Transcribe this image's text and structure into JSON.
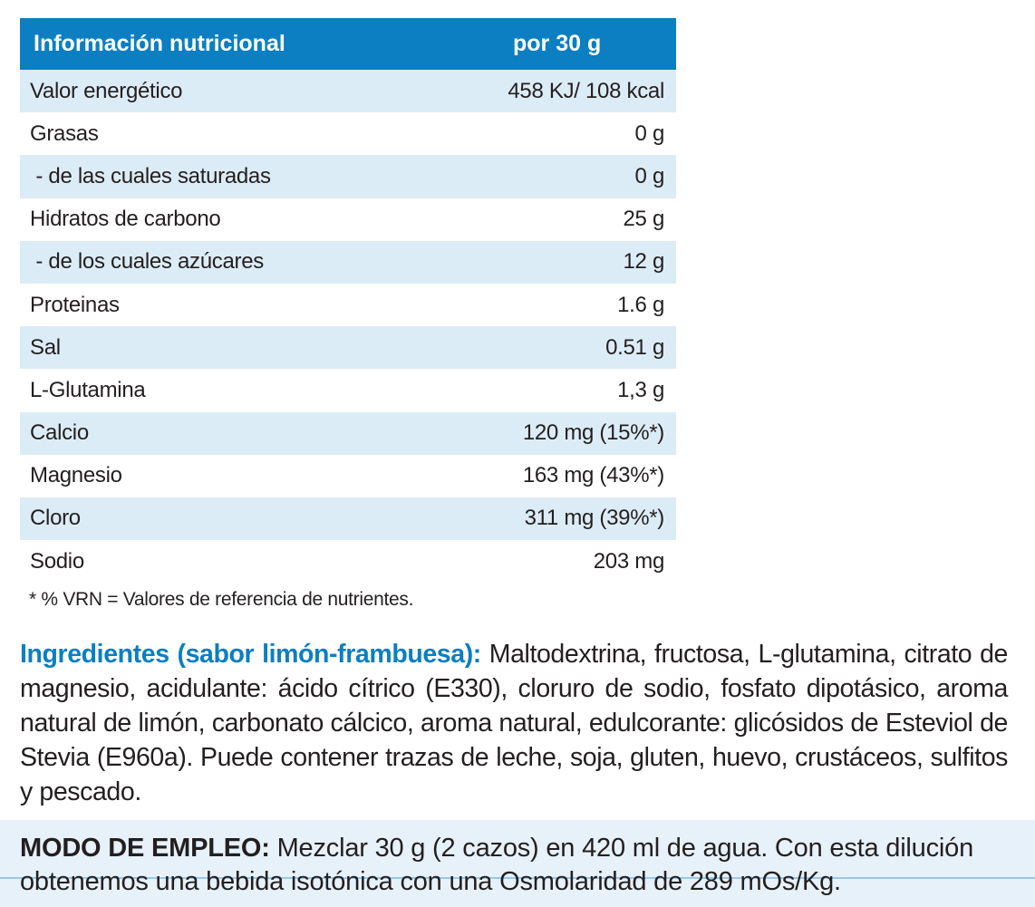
{
  "table": {
    "header": {
      "col1": "Información nutricional",
      "col2": "por 30 g"
    },
    "rows": [
      {
        "label": "Valor energético",
        "value": "458 KJ/ 108 kcal"
      },
      {
        "label": "Grasas",
        "value": "0 g"
      },
      {
        "label": " - de las cuales saturadas",
        "value": "0 g"
      },
      {
        "label": "Hidratos de carbono",
        "value": "25 g"
      },
      {
        "label": " - de los cuales azúcares",
        "value": "12 g"
      },
      {
        "label": "Proteinas",
        "value": "1.6 g"
      },
      {
        "label": "Sal",
        "value": "0.51 g"
      },
      {
        "label": "L-Glutamina",
        "value": "1,3 g"
      },
      {
        "label": "Calcio",
        "value": "120 mg (15%*)"
      },
      {
        "label": "Magnesio",
        "value": "163 mg (43%*)"
      },
      {
        "label": "Cloro",
        "value": "311 mg (39%*)"
      },
      {
        "label": "Sodio",
        "value": "203 mg"
      }
    ],
    "footnote": "* % VRN = Valores de referencia de nutrientes."
  },
  "ingredients": {
    "heading": "Ingredientes (sabor limón-frambuesa):",
    "text": " Maltodextrina, fructosa, L-glutamina, citrato de magnesio, acidulante: ácido cítrico (E330), cloruro de sodio, fosfato dipotásico, aroma natural de limón, carbonato cálcico, aroma natural, edulcorante: glicósidos de Esteviol de Stevia (E960a). Puede contener trazas de leche, soja, gluten, huevo, crustáceos, sulfitos y pescado."
  },
  "usage": {
    "heading": "MODO DE EMPLEO:",
    "text": " Mezclar 30 g (2 cazos) en 420 ml de agua. Con esta dilución obtenemos una bebida isotónica con una Osmolaridad de 289 mOs/Kg."
  },
  "colors": {
    "accent": "#0b7fc1",
    "row_shade": "#dcecf7",
    "band": "#e6f1f9"
  }
}
